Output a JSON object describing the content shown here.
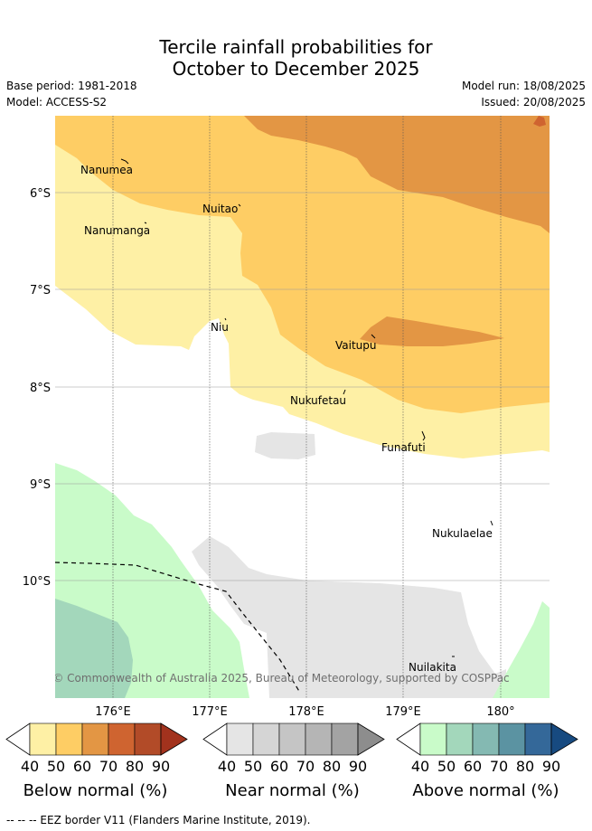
{
  "title": {
    "line1": "Tercile rainfall probabilities for",
    "line2": "October to December 2025"
  },
  "meta": {
    "base_period": "Base period: 1981-2018",
    "model": "Model: ACCESS-S2",
    "model_run": "Model run: 18/08/2025",
    "issued": "Issued: 20/08/2025"
  },
  "map": {
    "lat_labels": [
      "6°S",
      "7°S",
      "8°S",
      "9°S",
      "10°S"
    ],
    "lon_labels": [
      "176°E",
      "177°E",
      "178°E",
      "179°E",
      "180°"
    ],
    "places": [
      "Nanumea",
      "Nuitao",
      "Nanumanga",
      "Niu",
      "Vaitupu",
      "Nukufetau",
      "Funafuti",
      "Nukulaelae",
      "Nuilakita"
    ],
    "copyright": "© Commonwealth of Australia 2025, Bureau of Meteorology, supported by COSPPac",
    "colors": {
      "below_40": "#fef0a5",
      "below_50": "#fecd64",
      "below_60": "#e39644",
      "below_70": "#cf6430",
      "near_50": "#e5e5e5",
      "above_40": "#c9fbc9",
      "above_50": "#a3d7bb"
    }
  },
  "colorbars": [
    {
      "name": "Below normal (%)",
      "ticks": [
        "40",
        "50",
        "60",
        "70",
        "80",
        "90"
      ],
      "colors": [
        "#fef0a5",
        "#fecd64",
        "#e39644",
        "#cf6430",
        "#b24b28",
        "#a2321d"
      ]
    },
    {
      "name": "Near normal (%)",
      "ticks": [
        "40",
        "50",
        "60",
        "70",
        "80",
        "90"
      ],
      "colors": [
        "#e5e5e5",
        "#d5d5d5",
        "#c5c5c5",
        "#b5b5b5",
        "#a3a3a3",
        "#8d8d8d"
      ]
    },
    {
      "name": "Above normal (%)",
      "ticks": [
        "40",
        "50",
        "60",
        "70",
        "80",
        "90"
      ],
      "colors": [
        "#c9fbc9",
        "#a3d7bb",
        "#84b9b2",
        "#5b93a2",
        "#346899",
        "#174a80"
      ]
    }
  ],
  "legend_note": "--  --  -- EEZ border V11 (Flanders Marine Institute, 2019)."
}
